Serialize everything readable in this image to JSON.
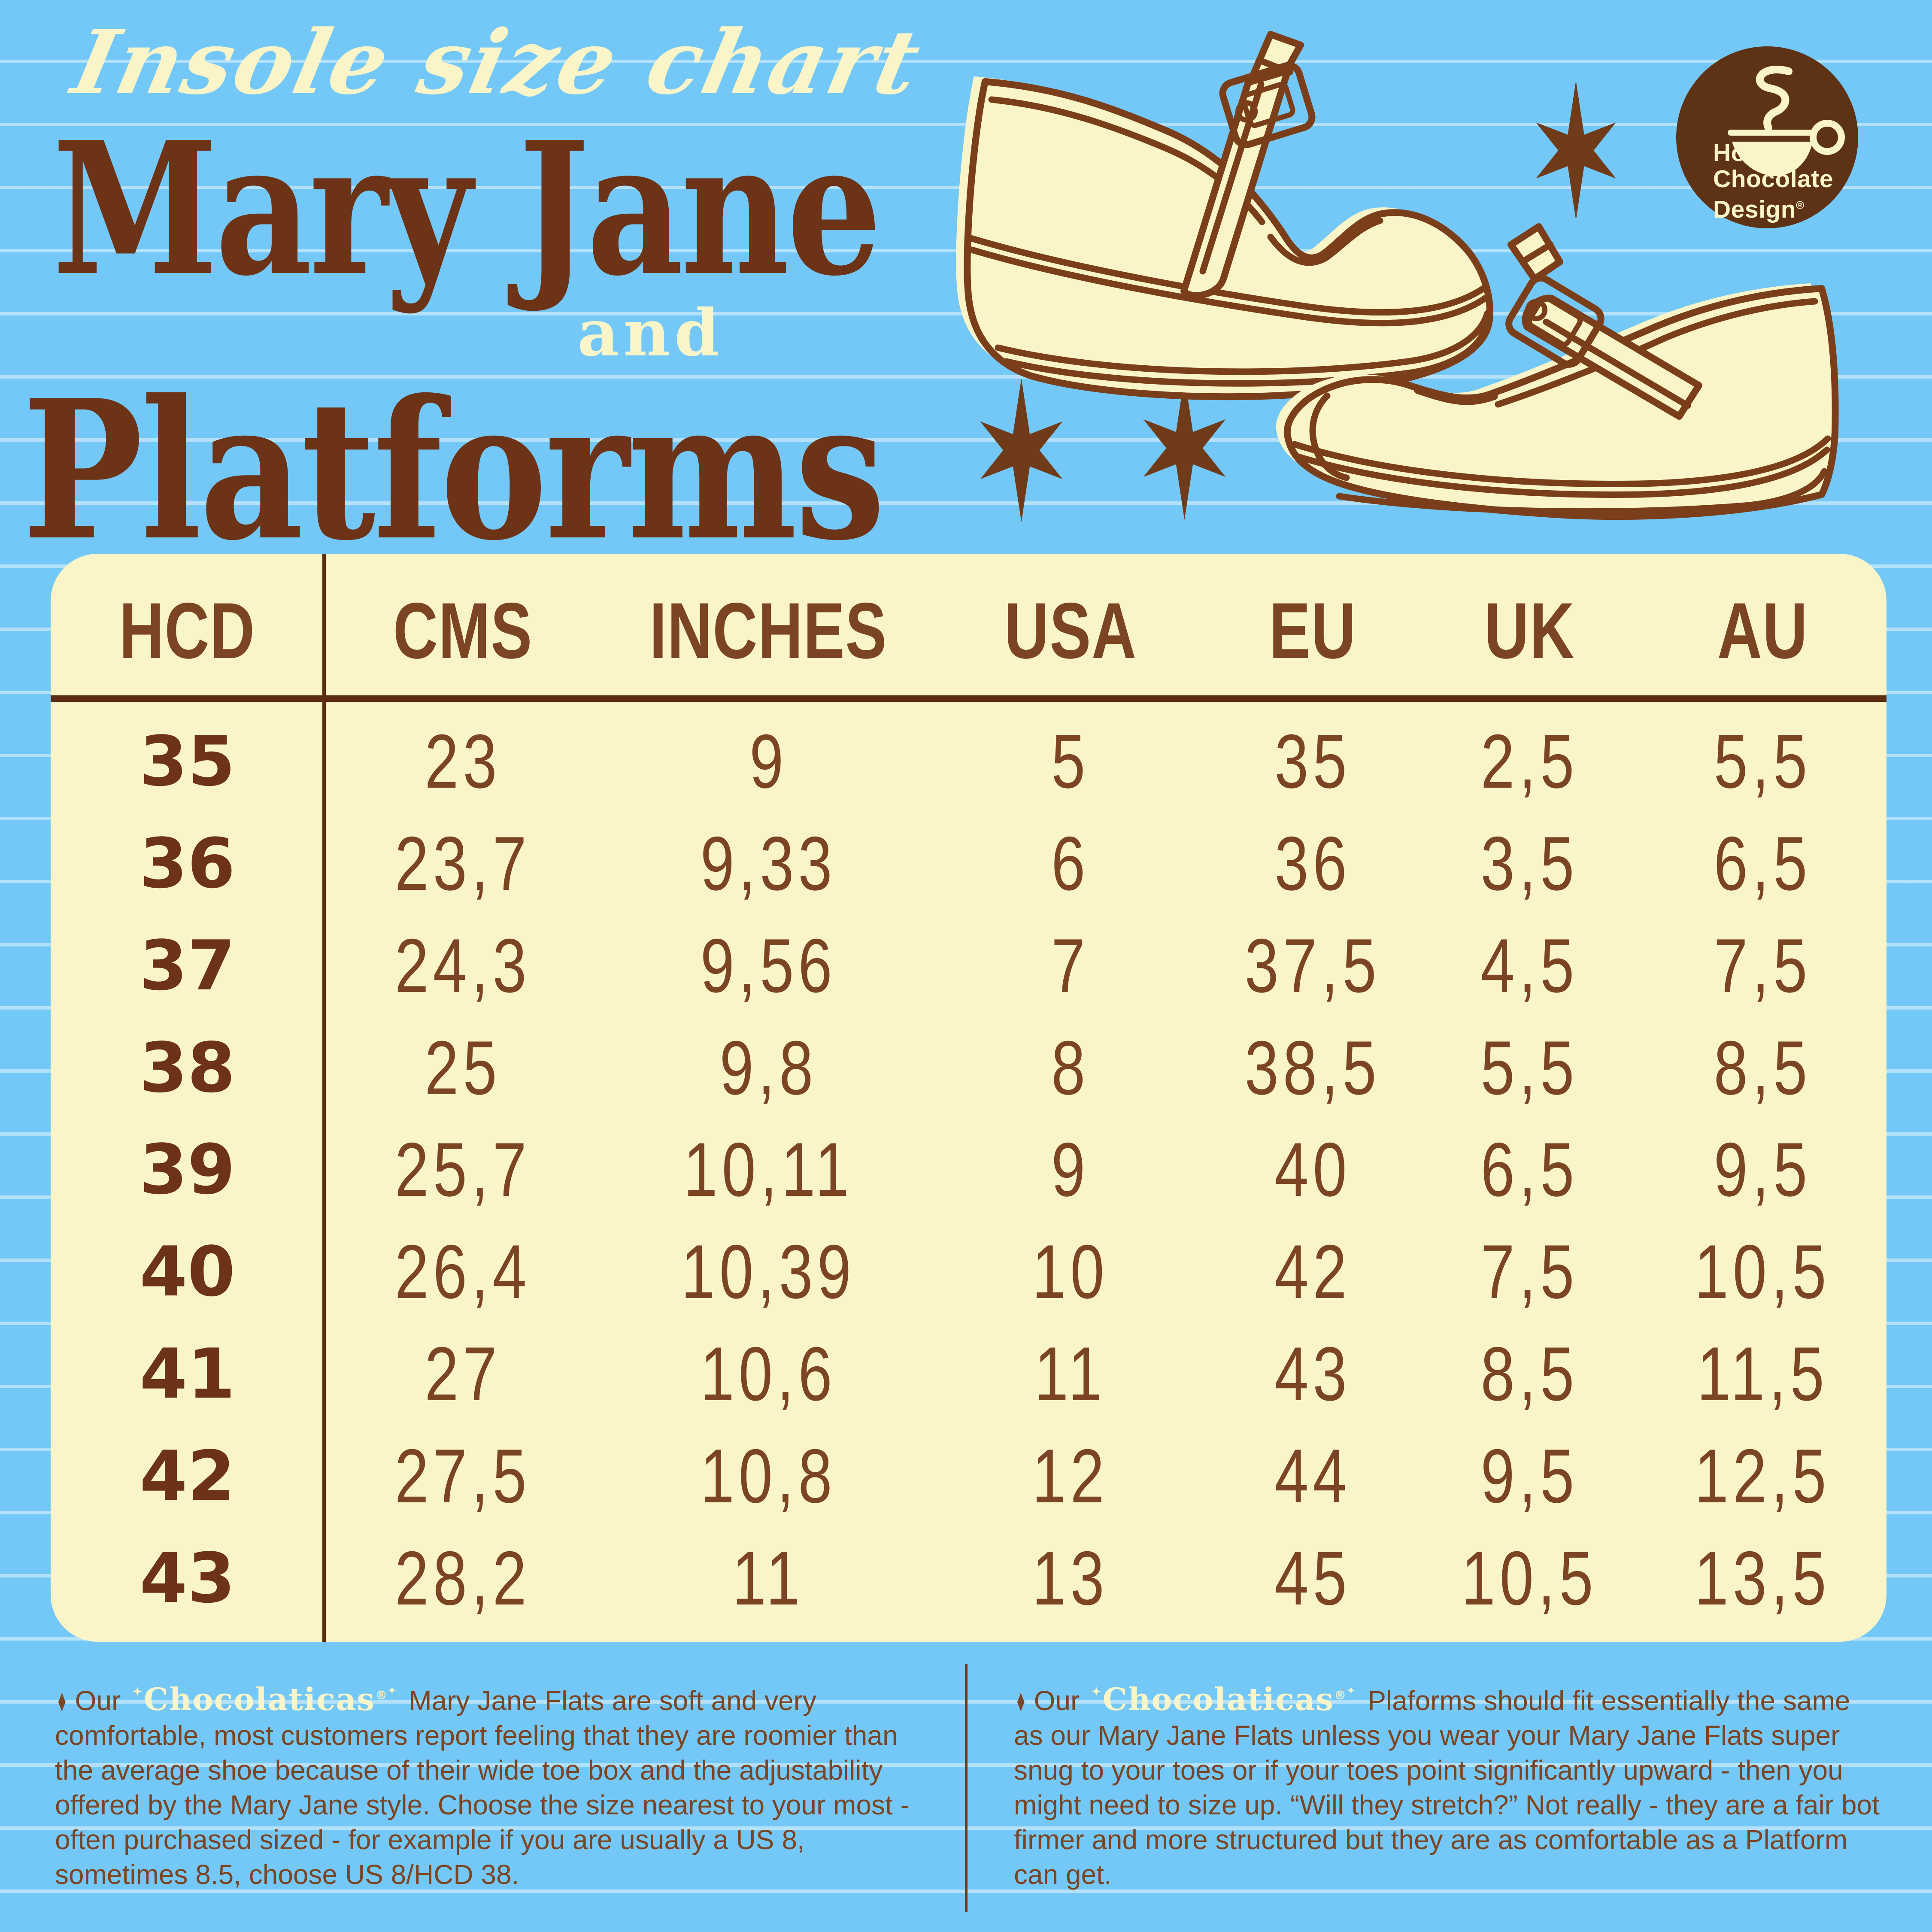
{
  "header": {
    "script_title": "Insole size chart",
    "main_title_line1": "Mary Jane",
    "conjunction": "and",
    "main_title_line2": "Platforms"
  },
  "logo": {
    "icon": "hot-chocolate-cup-icon",
    "line1": "Hot",
    "line2": "Chocolate",
    "line3": "Design",
    "registered": "®"
  },
  "chart_data": {
    "type": "table",
    "title": "Insole size chart - Mary Jane and Platforms",
    "columns": [
      "HCD",
      "CMS",
      "INCHES",
      "USA",
      "EU",
      "UK",
      "AU"
    ],
    "rows": [
      [
        "35",
        "23",
        "9",
        "5",
        "35",
        "2,5",
        "5,5"
      ],
      [
        "36",
        "23,7",
        "9,33",
        "6",
        "36",
        "3,5",
        "6,5"
      ],
      [
        "37",
        "24,3",
        "9,56",
        "7",
        "37,5",
        "4,5",
        "7,5"
      ],
      [
        "38",
        "25",
        "9,8",
        "8",
        "38,5",
        "5,5",
        "8,5"
      ],
      [
        "39",
        "25,7",
        "10,11",
        "9",
        "40",
        "6,5",
        "9,5"
      ],
      [
        "40",
        "26,4",
        "10,39",
        "10",
        "42",
        "7,5",
        "10,5"
      ],
      [
        "41",
        "27",
        "10,6",
        "11",
        "43",
        "8,5",
        "11,5"
      ],
      [
        "42",
        "27,5",
        "10,8",
        "12",
        "44",
        "9,5",
        "12,5"
      ],
      [
        "43",
        "28,2",
        "11",
        "13",
        "45",
        "10,5",
        "13,5"
      ]
    ],
    "layout": {
      "grid": false,
      "header_row": true,
      "first_column_group": "HCD"
    }
  },
  "footnotes": {
    "left": {
      "bullet": "♦",
      "prefix": "Our",
      "brand": "Chocolaticas",
      "registered": "®",
      "text": " Mary Jane Flats are soft and very comfortable, most customers report feeling that they are roomier than the average shoe because of their wide toe box and the adjustability offered by the Mary Jane style. Choose the size nearest to your most - often purchased sized - for example if you are usually a US 8, sometimes 8.5, choose US 8/HCD 38."
    },
    "right": {
      "bullet": "♦",
      "prefix": "Our",
      "brand": "Chocolaticas",
      "registered": "®",
      "text": " Plaforms should fit essentially the same as our Mary Jane Flats unless you wear your Mary Jane Flats super snug to your toes or if your toes point significantly upward - then you might need to size  up. “Will they stretch?” Not really - they are a fair bot firmer and more structured but they are as comfortable as a Platform can get."
    }
  },
  "decorations": {
    "stars": "six-pointed-retro-star",
    "shoe1": "platform-mary-jane-shoe-illustration",
    "shoe2": "wedge-mary-jane-shoe-illustration"
  },
  "colors": {
    "background": "#74c8f7",
    "ruled_line": "#c4e7fb",
    "cream": "#f9f5c9",
    "title_brown": "#6d3317",
    "text_brown": "#7b4423",
    "line_brown": "#5c2d10",
    "logo_brown": "#5e3214"
  }
}
